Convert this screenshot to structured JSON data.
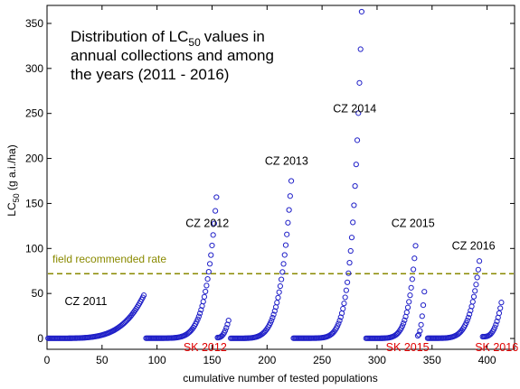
{
  "chart_data": {
    "type": "scatter",
    "title_lines": [
      "Distribution of LC",
      "values in",
      "annual collections and among",
      "the years (2011 - 2016)"
    ],
    "title_subscript": "50",
    "xlabel": "cumulative number of tested populations",
    "ylabel": "LC",
    "ylabel_subscript": "50",
    "ylabel_suffix": " (g a.i./ha)",
    "xlim": [
      0,
      425
    ],
    "ylim": [
      -12,
      370
    ],
    "xticks": [
      0,
      50,
      100,
      150,
      200,
      250,
      300,
      350,
      400
    ],
    "yticks": [
      0,
      50,
      100,
      150,
      200,
      250,
      300,
      350
    ],
    "grid": false,
    "marker_color": "#2020c8",
    "reference_line": {
      "label": "field recommended rate",
      "y": 72,
      "color": "#8a8a00"
    },
    "groups": [
      {
        "label": "CZ 2011",
        "label_color": "#000000",
        "label_pos": [
          16,
          41
        ],
        "x_start": 1,
        "n": 88,
        "min": 0.2,
        "max": 48,
        "shape": 4.5
      },
      {
        "label": "CZ 2012",
        "label_color": "#000000",
        "label_pos": [
          126,
          128
        ],
        "x_start": 90,
        "n": 65,
        "min": 0.3,
        "max": 157,
        "shape": 6.5
      },
      {
        "label": "SK 2012",
        "label_color": "#e00000",
        "label_pos": [
          124,
          -10
        ],
        "x_start": 155,
        "n": 11,
        "min": 1,
        "max": 20,
        "shape": 2.5
      },
      {
        "label": "CZ 2013",
        "label_color": "#000000",
        "label_pos": [
          198,
          197
        ],
        "x_start": 167,
        "n": 56,
        "min": 0.2,
        "max": 175,
        "shape": 5.5
      },
      {
        "label": "CZ 2014",
        "label_color": "#000000",
        "label_pos": [
          260,
          255
        ],
        "x_start": 224,
        "n": 63,
        "min": 0.3,
        "max": 363,
        "shape": 7.5
      },
      {
        "label": "CZ 2015",
        "label_color": "#000000",
        "label_pos": [
          313,
          128
        ],
        "x_start": 290,
        "n": 46,
        "min": 0.2,
        "max": 103,
        "shape": 6.5
      },
      {
        "label": "SK 2015",
        "label_color": "#e00000",
        "label_pos": [
          308,
          -10
        ],
        "x_start": 337,
        "n": 7,
        "min": 3,
        "max": 52,
        "shape": 2.0
      },
      {
        "label": "CZ 2016",
        "label_color": "#000000",
        "label_pos": [
          368,
          103
        ],
        "x_start": 346,
        "n": 48,
        "min": 0.3,
        "max": 86,
        "shape": 5.5
      },
      {
        "label": "SK 2016",
        "label_color": "#e00000",
        "label_pos": [
          389,
          -10
        ],
        "x_start": 396,
        "n": 18,
        "min": 2,
        "max": 40,
        "shape": 3.0
      }
    ]
  }
}
